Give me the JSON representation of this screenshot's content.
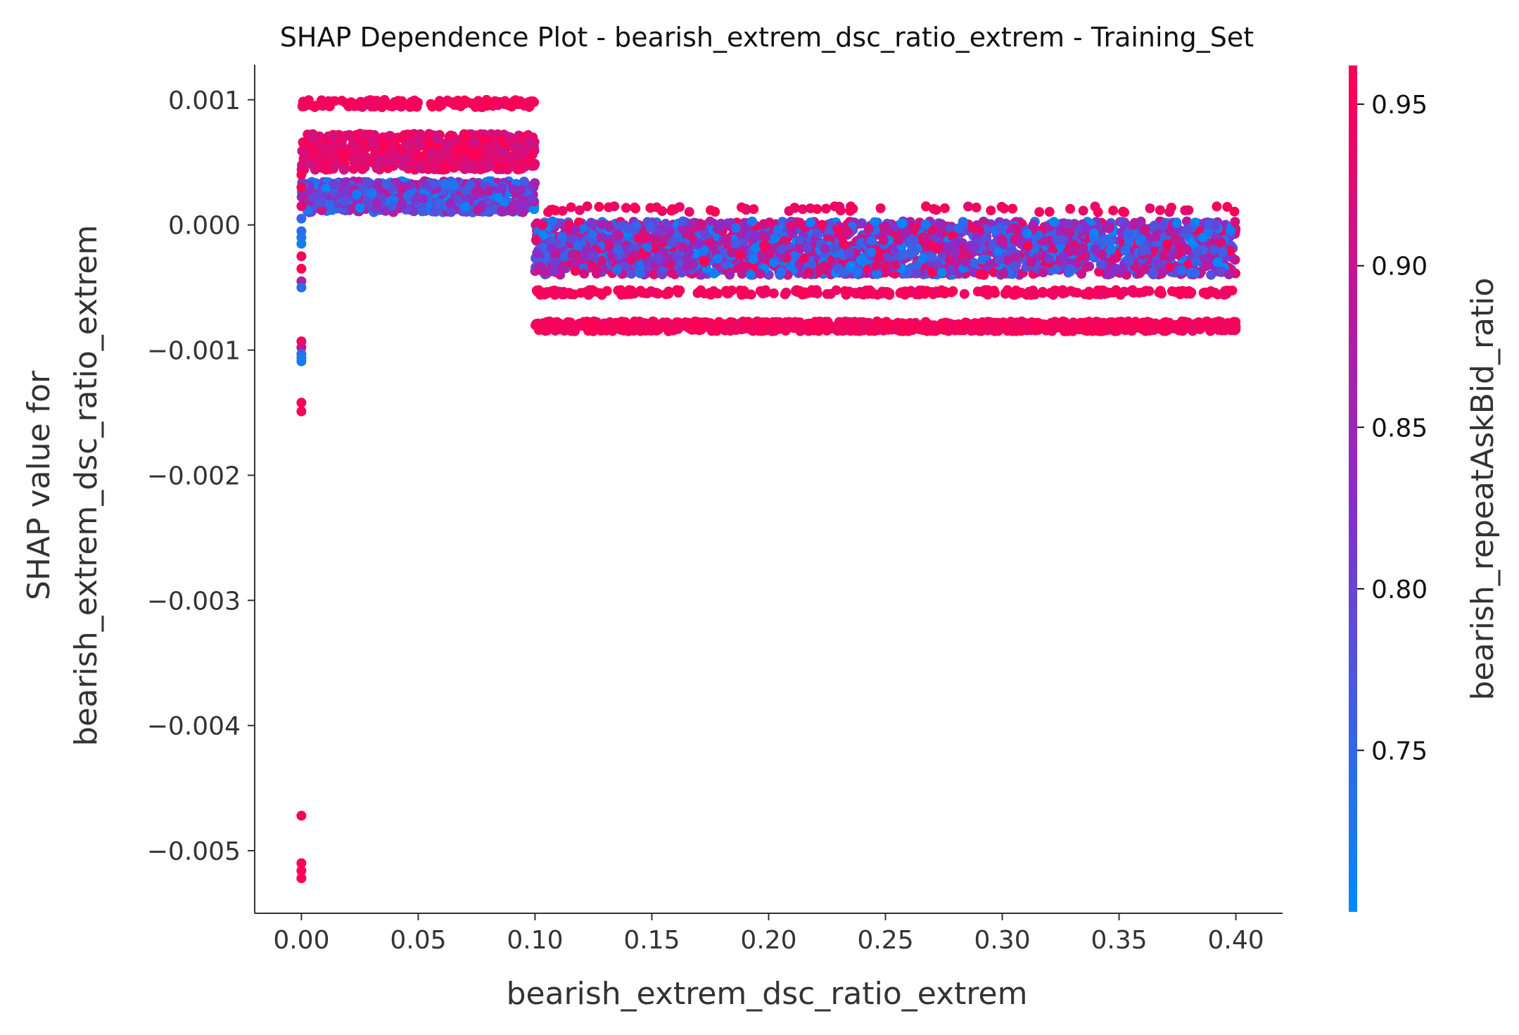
{
  "chart_data": {
    "type": "scatter",
    "title": "SHAP Dependence Plot - bearish_extrem_dsc_ratio_extrem - Training_Set",
    "xlabel": "bearish_extrem_dsc_ratio_extrem",
    "ylabel_line1": "SHAP value for",
    "ylabel_line2": "bearish_extrem_dsc_ratio_extrem",
    "xlim": [
      -0.02,
      0.42
    ],
    "ylim": [
      -0.0055,
      0.00128
    ],
    "x_ticks": [
      {
        "value": 0.0,
        "label": "0.00"
      },
      {
        "value": 0.05,
        "label": "0.05"
      },
      {
        "value": 0.1,
        "label": "0.10"
      },
      {
        "value": 0.15,
        "label": "0.15"
      },
      {
        "value": 0.2,
        "label": "0.20"
      },
      {
        "value": 0.25,
        "label": "0.25"
      },
      {
        "value": 0.3,
        "label": "0.30"
      },
      {
        "value": 0.35,
        "label": "0.35"
      },
      {
        "value": 0.4,
        "label": "0.40"
      }
    ],
    "y_ticks": [
      {
        "value": 0.001,
        "label": "0.001"
      },
      {
        "value": 0.0,
        "label": "0.000"
      },
      {
        "value": -0.001,
        "label": "−0.001"
      },
      {
        "value": -0.002,
        "label": "−0.002"
      },
      {
        "value": -0.003,
        "label": "−0.003"
      },
      {
        "value": -0.004,
        "label": "−0.004"
      },
      {
        "value": -0.005,
        "label": "−0.005"
      }
    ],
    "grid": false,
    "colorbar": {
      "label": "bearish_repeatAskBid_ratio",
      "range": [
        0.7,
        0.962
      ],
      "ticks": [
        {
          "value": 0.75,
          "label": "0.75"
        },
        {
          "value": 0.8,
          "label": "0.80"
        },
        {
          "value": 0.85,
          "label": "0.85"
        },
        {
          "value": 0.9,
          "label": "0.90"
        },
        {
          "value": 0.95,
          "label": "0.95"
        }
      ],
      "colors": {
        "low": "#008afb",
        "mid": "#8a2ccb",
        "high": "#ff0052"
      }
    },
    "point_groups": [
      {
        "x_range": [
          0.0,
          0.1
        ],
        "y_range": [
          0.00094,
          0.001
        ],
        "color_range": [
          0.94,
          0.962
        ],
        "count": 160
      },
      {
        "x_range": [
          0.0,
          0.1
        ],
        "y_range": [
          0.00044,
          0.00073
        ],
        "color_range": [
          0.9,
          0.962
        ],
        "count": 700
      },
      {
        "x_range": [
          0.0,
          0.1
        ],
        "y_range": [
          0.0001,
          0.00035
        ],
        "color_range": [
          0.7,
          0.9
        ],
        "count": 700
      },
      {
        "x_range": [
          0.1,
          0.4
        ],
        "y_range": [
          0.0001,
          0.00015
        ],
        "color_range": [
          0.93,
          0.962
        ],
        "count": 70
      },
      {
        "x_range": [
          0.1,
          0.4
        ],
        "y_range": [
          -0.0004,
          3e-05
        ],
        "color_range": [
          0.7,
          0.962
        ],
        "count": 2400
      },
      {
        "x_range": [
          0.1,
          0.4
        ],
        "y_range": [
          -0.00056,
          -0.00052
        ],
        "color_range": [
          0.94,
          0.962
        ],
        "count": 260
      },
      {
        "x_range": [
          0.1,
          0.4
        ],
        "y_range": [
          -0.00085,
          -0.00077
        ],
        "color_range": [
          0.94,
          0.962
        ],
        "count": 900
      }
    ],
    "points": [
      {
        "x": 0.0,
        "y": 0.0004,
        "c": 0.95
      },
      {
        "x": 0.0,
        "y": 0.0003,
        "c": 0.96
      },
      {
        "x": 0.0,
        "y": 0.00015,
        "c": 0.93
      },
      {
        "x": 0.0,
        "y": 5e-05,
        "c": 0.75
      },
      {
        "x": 0.0,
        "y": -5e-05,
        "c": 0.74
      },
      {
        "x": 0.0,
        "y": -0.0001,
        "c": 0.73
      },
      {
        "x": 0.0,
        "y": -0.00015,
        "c": 0.72
      },
      {
        "x": 0.0,
        "y": -0.00025,
        "c": 0.95
      },
      {
        "x": 0.0,
        "y": -0.00035,
        "c": 0.96
      },
      {
        "x": 0.0,
        "y": -0.00045,
        "c": 0.88
      },
      {
        "x": 0.0,
        "y": -0.0005,
        "c": 0.74
      },
      {
        "x": 0.0,
        "y": -0.00093,
        "c": 0.95
      },
      {
        "x": 0.0,
        "y": -0.00098,
        "c": 0.9
      },
      {
        "x": 0.0,
        "y": -0.00103,
        "c": 0.74
      },
      {
        "x": 0.0,
        "y": -0.00106,
        "c": 0.73
      },
      {
        "x": 0.0,
        "y": -0.00109,
        "c": 0.72
      },
      {
        "x": 0.0,
        "y": -0.00142,
        "c": 0.95
      },
      {
        "x": 0.0,
        "y": -0.00149,
        "c": 0.96
      },
      {
        "x": 0.0,
        "y": -0.00472,
        "c": 0.96
      },
      {
        "x": 0.0,
        "y": -0.0051,
        "c": 0.96
      },
      {
        "x": 0.0,
        "y": -0.00516,
        "c": 0.96
      },
      {
        "x": 0.0,
        "y": -0.00522,
        "c": 0.96
      }
    ]
  }
}
